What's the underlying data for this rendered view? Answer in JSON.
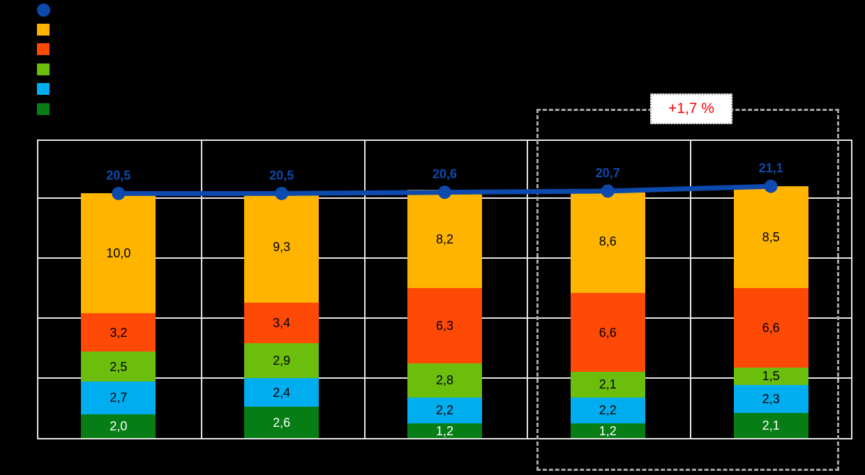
{
  "background_color": "#000000",
  "legend": {
    "items": [
      {
        "name": "total-line-marker",
        "shape": "circle",
        "color": "#0D4AAD"
      },
      {
        "name": "series-yellow-marker",
        "shape": "square",
        "color": "#FFB400"
      },
      {
        "name": "series-orange-marker",
        "shape": "square",
        "color": "#FF4906"
      },
      {
        "name": "series-green-marker",
        "shape": "square",
        "color": "#6CBE0C"
      },
      {
        "name": "series-lightblue-marker",
        "shape": "square",
        "color": "#00AEEF"
      },
      {
        "name": "series-darkgreen-marker",
        "shape": "square",
        "color": "#077D15"
      }
    ]
  },
  "annotation": {
    "label": "+1,7 %",
    "color": "#FF0000"
  },
  "chart_data": {
    "type": "bar",
    "subtype": "stacked-bars-with-total-line",
    "num_categories": 5,
    "categories": [
      "",
      "",
      "",
      "",
      ""
    ],
    "ylim": [
      0,
      25
    ],
    "grid_step": 5,
    "grid": true,
    "series": [
      {
        "name": "segment-darkgreen",
        "color": "#077D15",
        "label_color": "#FFFFFF",
        "values": [
          2.0,
          2.6,
          1.2,
          1.2,
          2.1
        ],
        "labels": [
          "2,0",
          "2,6",
          "1,2",
          "1,2",
          "2,1"
        ]
      },
      {
        "name": "segment-lightblue",
        "color": "#00AEEF",
        "label_color": "#000000",
        "values": [
          2.7,
          2.4,
          2.2,
          2.2,
          2.3
        ],
        "labels": [
          "2,7",
          "2,4",
          "2,2",
          "2,2",
          "2,3"
        ]
      },
      {
        "name": "segment-green",
        "color": "#6CBE0C",
        "label_color": "#000000",
        "values": [
          2.5,
          2.9,
          2.8,
          2.1,
          1.5
        ],
        "labels": [
          "2,5",
          "2,9",
          "2,8",
          "2,1",
          "1,5"
        ]
      },
      {
        "name": "segment-orange",
        "color": "#FF4906",
        "label_color": "#000000",
        "values": [
          3.2,
          3.4,
          6.3,
          6.6,
          6.6
        ],
        "labels": [
          "3,2",
          "3,4",
          "6,3",
          "6,6",
          "6,6"
        ]
      },
      {
        "name": "segment-yellow",
        "color": "#FFB400",
        "label_color": "#000000",
        "values": [
          10.0,
          9.3,
          8.2,
          8.6,
          8.5
        ],
        "labels": [
          "10,0",
          "9,3",
          "8,2",
          "8,6",
          "8,5"
        ]
      }
    ],
    "line": {
      "name": "total-line",
      "color": "#0D4AAD",
      "label_color": "#0D4AAD",
      "values": [
        20.5,
        20.5,
        20.6,
        20.7,
        21.1
      ],
      "labels": [
        "20,5",
        "20,5",
        "20,6",
        "20,7",
        "21,1"
      ]
    },
    "annotation": {
      "label": "+1,7 %",
      "range": "last two categories"
    },
    "legend_position": "top-left (labels not visible)"
  }
}
